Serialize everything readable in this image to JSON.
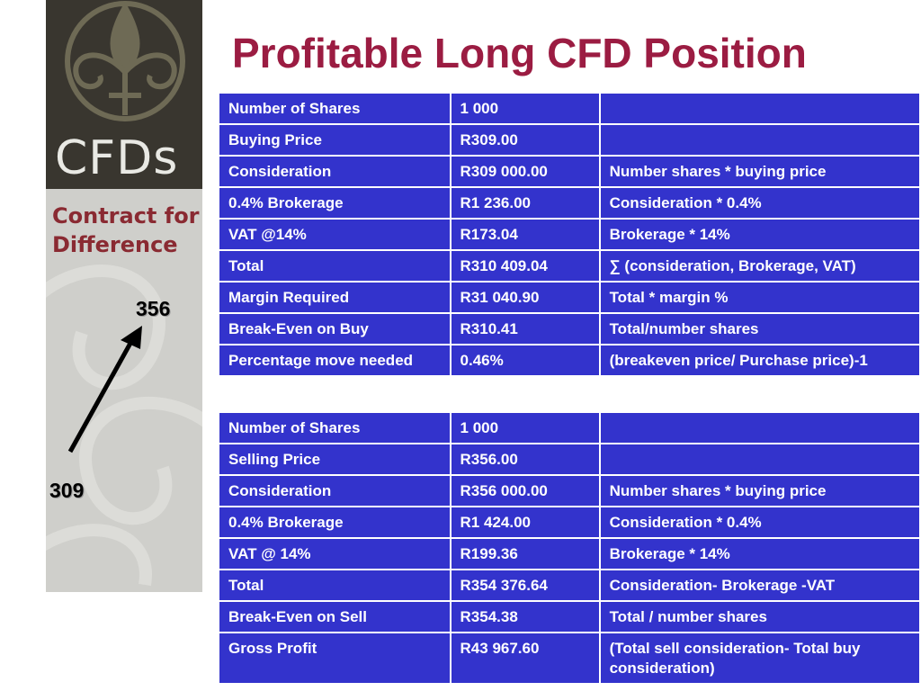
{
  "logo": {
    "name": "CFDs",
    "tagline_line1": "Contract for",
    "tagline_line2": "Difference"
  },
  "title": "Profitable Long CFD Position",
  "price_indicator": {
    "low": "309",
    "high": "356",
    "direction": "up"
  },
  "buy_table": [
    [
      "Number of Shares",
      "1 000",
      ""
    ],
    [
      "Buying Price",
      "R309.00",
      ""
    ],
    [
      "Consideration",
      "R309 000.00",
      "Number shares * buying price"
    ],
    [
      "0.4% Brokerage",
      "R1 236.00",
      "Consideration * 0.4%"
    ],
    [
      "VAT @14%",
      "R173.04",
      "Brokerage * 14%"
    ],
    [
      "Total",
      "R310 409.04",
      "∑ (consideration, Brokerage, VAT)"
    ],
    [
      "Margin Required",
      "R31 040.90",
      "Total * margin %"
    ],
    [
      "Break-Even on Buy",
      "R310.41",
      "Total/number shares"
    ],
    [
      "Percentage move needed",
      "0.46%",
      "(breakeven price/ Purchase price)-1"
    ]
  ],
  "sell_table": [
    [
      "Number of Shares",
      "1 000",
      ""
    ],
    [
      "Selling Price",
      "R356.00",
      ""
    ],
    [
      "Consideration",
      "R356 000.00",
      "Number shares * buying price"
    ],
    [
      "0.4% Brokerage",
      "R1 424.00",
      "Consideration * 0.4%"
    ],
    [
      "VAT @ 14%",
      "R199.36",
      "Brokerage * 14%"
    ],
    [
      "Total",
      "R354 376.64",
      "Consideration- Brokerage -VAT"
    ],
    [
      "Break-Even on Sell",
      "R354.38",
      "Total / number shares"
    ],
    [
      "Gross Profit",
      "R43 967.60",
      "(Total sell consideration- Total buy consideration)"
    ]
  ],
  "colors": {
    "title": "#9b1c42",
    "table_bg": "#3333cc",
    "table_text": "#ffffff",
    "panel_dark": "#39362f",
    "panel_light": "#cfcfcb",
    "tagline": "#8a2a32"
  }
}
